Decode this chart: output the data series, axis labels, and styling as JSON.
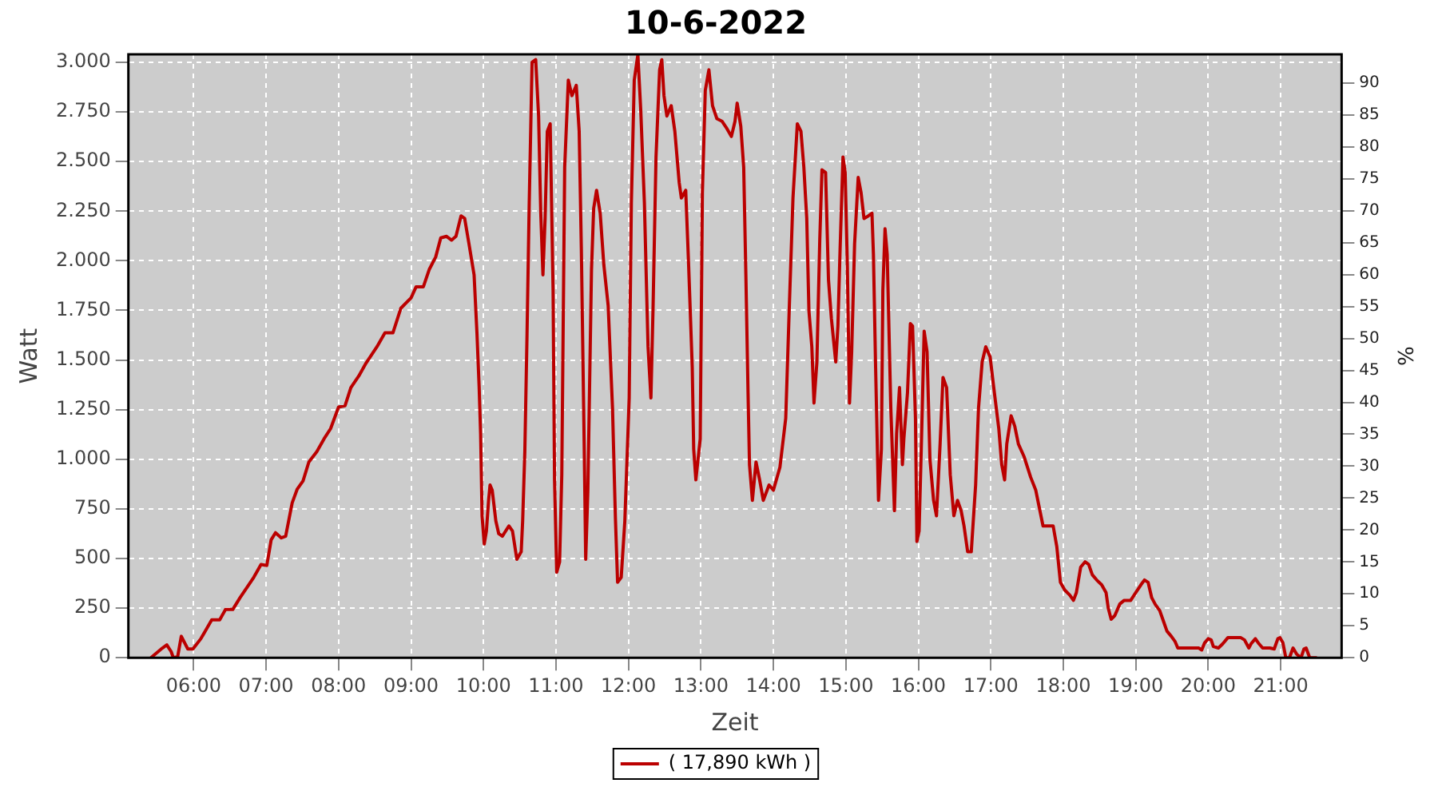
{
  "chart_data": {
    "type": "line",
    "title": "10-6-2022",
    "xlabel": "Zeit",
    "ylabel": "Watt",
    "y2label": "%",
    "x": [
      5.41,
      5.57,
      5.63,
      5.69,
      5.72,
      5.78,
      5.83,
      5.92,
      5.99,
      6.1,
      6.25,
      6.36,
      6.44,
      6.54,
      6.64,
      6.83,
      6.93,
      7.01,
      7.07,
      7.13,
      7.21,
      7.27,
      7.36,
      7.43,
      7.51,
      7.59,
      7.7,
      7.8,
      7.89,
      8.0,
      8.09,
      8.17,
      8.28,
      8.38,
      8.53,
      8.64,
      8.75,
      8.86,
      9.0,
      9.07,
      9.17,
      9.25,
      9.34,
      9.41,
      9.49,
      9.56,
      9.62,
      9.69,
      9.74,
      9.8,
      9.87,
      9.91,
      9.94,
      9.96,
      9.98,
      10.01,
      10.04,
      10.07,
      10.09,
      10.12,
      10.17,
      10.21,
      10.26,
      10.35,
      10.4,
      10.46,
      10.52,
      10.54,
      10.57,
      10.6,
      10.63,
      10.67,
      10.72,
      10.76,
      10.79,
      10.82,
      10.85,
      10.88,
      10.92,
      10.96,
      10.98,
      11.01,
      11.05,
      11.08,
      11.12,
      11.17,
      11.22,
      11.28,
      11.32,
      11.35,
      11.39,
      11.41,
      11.44,
      11.49,
      11.52,
      11.56,
      11.61,
      11.66,
      11.72,
      11.78,
      11.82,
      11.85,
      11.9,
      11.95,
      12.01,
      12.04,
      12.08,
      12.13,
      12.17,
      12.22,
      12.27,
      12.31,
      12.34,
      12.38,
      12.43,
      12.46,
      12.49,
      12.53,
      12.59,
      12.64,
      12.7,
      12.73,
      12.79,
      12.83,
      12.88,
      12.9,
      12.93,
      12.99,
      13.02,
      13.06,
      13.11,
      13.16,
      13.22,
      13.29,
      13.36,
      13.42,
      13.47,
      13.5,
      13.55,
      13.59,
      13.62,
      13.65,
      13.67,
      13.71,
      13.76,
      13.81,
      13.86,
      13.94,
      14.0,
      14.09,
      14.17,
      14.22,
      14.27,
      14.33,
      14.38,
      14.42,
      14.46,
      14.49,
      14.53,
      14.56,
      14.6,
      14.64,
      14.67,
      14.72,
      14.76,
      14.8,
      14.86,
      14.89,
      14.92,
      14.96,
      14.99,
      15.02,
      15.05,
      15.08,
      15.12,
      15.17,
      15.21,
      15.25,
      15.31,
      15.36,
      15.38,
      15.41,
      15.45,
      15.49,
      15.51,
      15.54,
      15.57,
      15.62,
      15.67,
      15.7,
      15.74,
      15.78,
      15.8,
      15.85,
      15.89,
      15.92,
      15.96,
      15.98,
      16.01,
      16.04,
      16.08,
      16.12,
      16.16,
      16.21,
      16.25,
      16.3,
      16.34,
      16.39,
      16.44,
      16.49,
      16.54,
      16.59,
      16.63,
      16.68,
      16.73,
      16.79,
      16.83,
      16.88,
      16.93,
      16.99,
      17.04,
      17.11,
      17.15,
      17.19,
      17.22,
      17.28,
      17.33,
      17.38,
      17.46,
      17.55,
      17.62,
      17.72,
      17.8,
      17.86,
      17.91,
      17.96,
      18.02,
      18.09,
      18.14,
      18.18,
      18.24,
      18.3,
      18.35,
      18.4,
      18.46,
      18.53,
      18.59,
      18.62,
      18.66,
      18.71,
      18.78,
      18.84,
      18.93,
      19.0,
      19.07,
      19.12,
      19.17,
      19.22,
      19.27,
      19.33,
      19.38,
      19.43,
      19.49,
      19.54,
      19.58,
      19.69,
      19.87,
      19.91,
      19.95,
      20.0,
      20.04,
      20.07,
      20.14,
      20.2,
      20.27,
      20.34,
      20.45,
      20.5,
      20.56,
      20.59,
      20.65,
      20.7,
      20.75,
      20.85,
      20.91,
      20.96,
      20.99,
      21.03,
      21.07,
      21.12,
      21.17,
      21.22,
      21.28,
      21.32,
      21.35,
      21.4,
      21.5
    ],
    "series": [
      {
        "name": "( 17,890 kWh )",
        "color": "#bb0000",
        "values": [
          0,
          49,
          65,
          31,
          0,
          5,
          108,
          44,
          44,
          96,
          191,
          191,
          243,
          243,
          302,
          405,
          470,
          465,
          594,
          630,
          604,
          612,
          780,
          850,
          891,
          986,
          1038,
          1103,
          1154,
          1263,
          1270,
          1361,
          1420,
          1485,
          1567,
          1637,
          1637,
          1761,
          1813,
          1869,
          1869,
          1955,
          2019,
          2115,
          2123,
          2104,
          2123,
          2226,
          2213,
          2084,
          1929,
          1632,
          1361,
          1128,
          715,
          573,
          638,
          793,
          870,
          844,
          689,
          625,
          612,
          664,
          638,
          496,
          534,
          689,
          1038,
          1619,
          2277,
          3000,
          3013,
          2729,
          2239,
          1929,
          2213,
          2652,
          2690,
          1851,
          896,
          431,
          483,
          922,
          2471,
          2910,
          2832,
          2884,
          2652,
          2058,
          1051,
          496,
          844,
          1955,
          2264,
          2355,
          2239,
          1980,
          1774,
          1257,
          702,
          380,
          405,
          689,
          1309,
          2290,
          2910,
          3039,
          2755,
          2290,
          1567,
          1309,
          1774,
          2523,
          2962,
          3013,
          2832,
          2729,
          2781,
          2652,
          2394,
          2316,
          2355,
          1980,
          1464,
          1051,
          896,
          1103,
          2342,
          2858,
          2962,
          2781,
          2716,
          2703,
          2665,
          2626,
          2703,
          2794,
          2677,
          2471,
          1929,
          1335,
          973,
          793,
          986,
          896,
          793,
          870,
          844,
          960,
          1206,
          1774,
          2316,
          2690,
          2652,
          2471,
          2213,
          1748,
          1567,
          1283,
          1490,
          2110,
          2458,
          2445,
          1903,
          1709,
          1490,
          1671,
          2058,
          2523,
          2445,
          1980,
          1283,
          1541,
          2084,
          2420,
          2342,
          2213,
          2226,
          2239,
          2032,
          1464,
          793,
          1051,
          1851,
          2161,
          2032,
          1257,
          741,
          1128,
          1361,
          973,
          1103,
          1335,
          1683,
          1671,
          1206,
          586,
          638,
          1051,
          1645,
          1541,
          999,
          793,
          715,
          1077,
          1412,
          1361,
          922,
          715,
          793,
          741,
          664,
          534,
          534,
          870,
          1257,
          1490,
          1567,
          1516,
          1361,
          1154,
          973,
          896,
          1077,
          1219,
          1167,
          1077,
          1012,
          909,
          844,
          664,
          664,
          664,
          560,
          380,
          341,
          315,
          289,
          328,
          457,
          483,
          470,
          418,
          392,
          367,
          328,
          250,
          194,
          212,
          271,
          289,
          289,
          328,
          367,
          392,
          380,
          302,
          268,
          238,
          186,
          134,
          108,
          83,
          49,
          49,
          49,
          39,
          75,
          96,
          90,
          57,
          49,
          70,
          101,
          101,
          101,
          90,
          49,
          70,
          96,
          70,
          49,
          49,
          44,
          96,
          101,
          75,
          0,
          0,
          49,
          18,
          0,
          44,
          49,
          0,
          0
        ]
      }
    ],
    "xlim": [
      5.1,
      21.84
    ],
    "xticks": [
      {
        "value": 6,
        "label": "06:00"
      },
      {
        "value": 7,
        "label": "07:00"
      },
      {
        "value": 8,
        "label": "08:00"
      },
      {
        "value": 9,
        "label": "09:00"
      },
      {
        "value": 10,
        "label": "10:00"
      },
      {
        "value": 11,
        "label": "11:00"
      },
      {
        "value": 12,
        "label": "12:00"
      },
      {
        "value": 13,
        "label": "13:00"
      },
      {
        "value": 14,
        "label": "14:00"
      },
      {
        "value": 15,
        "label": "15:00"
      },
      {
        "value": 16,
        "label": "16:00"
      },
      {
        "value": 17,
        "label": "17:00"
      },
      {
        "value": 18,
        "label": "18:00"
      },
      {
        "value": 19,
        "label": "19:00"
      },
      {
        "value": 20,
        "label": "20:00"
      },
      {
        "value": 21,
        "label": "21:00"
      }
    ],
    "ylim": [
      0,
      3040
    ],
    "yticks": [
      0,
      250,
      500,
      750,
      {
        "value": 1000,
        "label": "1.000"
      },
      {
        "value": 1250,
        "label": "1.250"
      },
      {
        "value": 1500,
        "label": "1.500"
      },
      {
        "value": 1750,
        "label": "1.750"
      },
      {
        "value": 2000,
        "label": "2.000"
      },
      {
        "value": 2250,
        "label": "2.250"
      },
      {
        "value": 2500,
        "label": "2.500"
      },
      {
        "value": 2750,
        "label": "2.750"
      },
      {
        "value": 3000,
        "label": "3.000"
      }
    ],
    "y2lim": [
      0,
      94.5
    ],
    "y2ticks": [
      0,
      5,
      10,
      15,
      20,
      25,
      30,
      35,
      40,
      45,
      50,
      55,
      60,
      65,
      70,
      75,
      80,
      85,
      90
    ],
    "grid": true,
    "legend": "bottom"
  }
}
